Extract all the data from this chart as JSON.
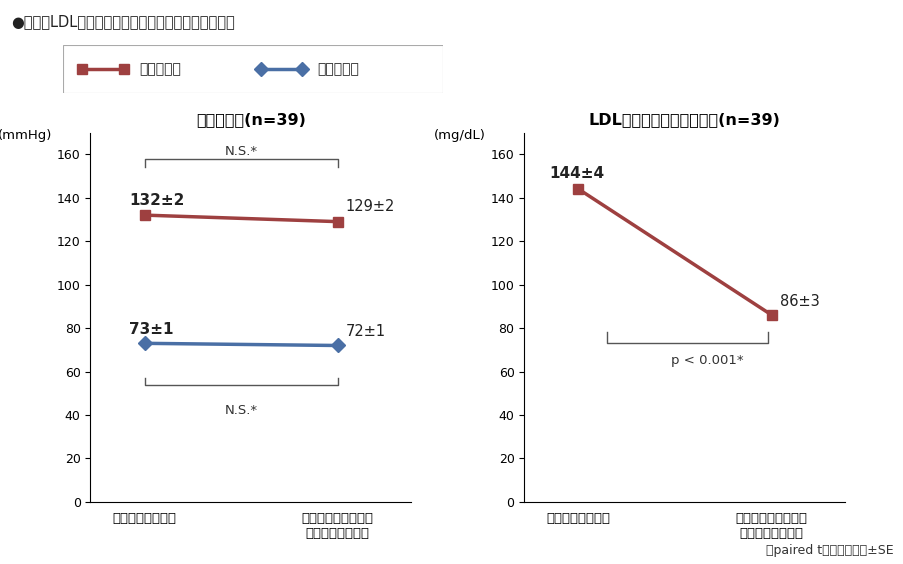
{
  "title": "●血圧とLDLコレステロールの変化（副次評価項目）",
  "title_fontsize": 10.5,
  "legend_labels": [
    "収縮期血圧",
    "拡張期血圧"
  ],
  "legend_colors": [
    "#9e4040",
    "#4a6fa5"
  ],
  "left_title": "血圧の変化(n=39)",
  "right_title": "LDLコレステロールの変化(n=39)",
  "left_ylabel": "(mmHg)",
  "right_ylabel": "(mg/dL)",
  "ylim": [
    0,
    170
  ],
  "yticks": [
    0,
    20,
    40,
    60,
    80,
    100,
    120,
    140,
    160
  ],
  "xticklabels": [
    "アムロジビン単剤",
    "カデュエット配合錢\n切り替え１２週後"
  ],
  "systolic_color": "#9e4040",
  "diastolic_color": "#4a6fa5",
  "ldl_color": "#9e4040",
  "bp_systolic": [
    132,
    129
  ],
  "bp_diastolic": [
    73,
    72
  ],
  "ldl_values": [
    144,
    86
  ],
  "bp_systolic_labels": [
    "132±2",
    "129±2"
  ],
  "bp_diastolic_labels": [
    "73±1",
    "72±1"
  ],
  "ldl_labels": [
    "144±4",
    "86±3"
  ],
  "ns_label": "N.S.*",
  "p_label_ldl": "p < 0.001*",
  "footer": "＊paired t検定　平均値±SE",
  "background_color": "#ffffff",
  "line_width": 2.5,
  "marker_sq": "s",
  "marker_di": "D",
  "marker_size": 7
}
